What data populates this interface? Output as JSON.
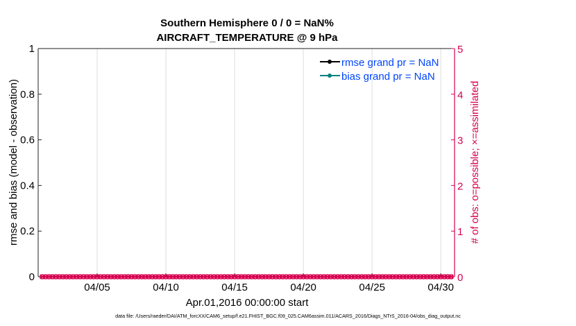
{
  "chart_data": {
    "type": "line",
    "title": "Southern Hemisphere 0 / 0 = NaN%",
    "subtitle": "AIRCRAFT_TEMPERATURE @ 9 hPa",
    "xlabel": "Apr.01,2016 00:00:00 start",
    "ylabel": "rmse and bias (model - observation)",
    "y2label": "# of obs: o=possible; ×=assimilated",
    "xlim": [
      "2016-03-31 17:00",
      "2016-05-01 00:00"
    ],
    "ylim": [
      0,
      1
    ],
    "y2lim": [
      0,
      5
    ],
    "xticks": [
      {
        "date": "2016-04-05",
        "label": "04/05"
      },
      {
        "date": "2016-04-10",
        "label": "04/10"
      },
      {
        "date": "2016-04-15",
        "label": "04/15"
      },
      {
        "date": "2016-04-20",
        "label": "04/20"
      },
      {
        "date": "2016-04-25",
        "label": "04/25"
      },
      {
        "date": "2016-04-30",
        "label": "04/30"
      }
    ],
    "yticks": [
      "0",
      "0.2",
      "0.4",
      "0.6",
      "0.8",
      "1"
    ],
    "y2ticks": [
      "0",
      "1",
      "2",
      "3",
      "4",
      "5"
    ],
    "grid": "vertical",
    "legend_position": "top-right",
    "series": [
      {
        "name": "rmse grand pr = NaN",
        "color": "#000000",
        "values": []
      },
      {
        "name": "bias grand pr = NaN",
        "color": "#008080",
        "values": []
      }
    ],
    "obs_counts": {
      "start": "2016-04-01 00:00",
      "end": "2016-04-30 18:00",
      "interval_hours": 6,
      "possible": 0,
      "assimilated": 0,
      "color": "#d6004f"
    }
  },
  "footer": "data file: /Users/raeder/DAI/ATM_forcXX/CAM6_setup/f.e21.FHIST_BGC.f09_025.CAM6assim.011/ACARS_2016/Diags_NTrS_2016-04/obs_diag_output.nc",
  "colors": {
    "right_axis": "#d6004f",
    "legend_text": "#0044ff"
  }
}
